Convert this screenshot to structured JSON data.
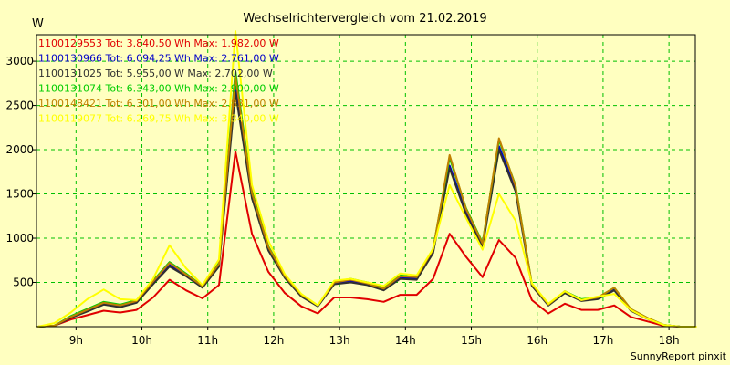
{
  "chart_data": {
    "type": "line",
    "title": "Wechselrichtervergleich vom 21.02.2019",
    "ylabel": "W",
    "credit": "SunnyReport pinxit",
    "xlim": [
      8.4,
      18.4
    ],
    "ylim": [
      0,
      3300
    ],
    "yticks": [
      500,
      1000,
      1500,
      2000,
      2500,
      3000
    ],
    "xticks": [
      {
        "v": 9,
        "label": "9h"
      },
      {
        "v": 10,
        "label": "10h"
      },
      {
        "v": 11,
        "label": "11h"
      },
      {
        "v": 12,
        "label": "12h"
      },
      {
        "v": 13,
        "label": "13h"
      },
      {
        "v": 14,
        "label": "14h"
      },
      {
        "v": 15,
        "label": "15h"
      },
      {
        "v": 16,
        "label": "16h"
      },
      {
        "v": 17,
        "label": "17h"
      },
      {
        "v": 18,
        "label": "18h"
      }
    ],
    "grid": true,
    "x": [
      8.42,
      8.67,
      8.92,
      9.17,
      9.42,
      9.67,
      9.92,
      10.17,
      10.42,
      10.67,
      10.92,
      11.17,
      11.42,
      11.67,
      11.92,
      12.17,
      12.42,
      12.67,
      12.92,
      13.17,
      13.42,
      13.67,
      13.92,
      14.17,
      14.42,
      14.67,
      14.92,
      15.17,
      15.42,
      15.67,
      15.92,
      16.17,
      16.42,
      16.67,
      16.92,
      17.17,
      17.42,
      17.67,
      17.92,
      18.17,
      18.42
    ],
    "series": [
      {
        "name": "1100129553 Tot: 3.840,50 Wh Max: 1.982,00 W",
        "color": "#e00000",
        "values": [
          0,
          10,
          80,
          130,
          180,
          160,
          190,
          330,
          530,
          410,
          320,
          470,
          1980,
          1050,
          620,
          380,
          230,
          150,
          330,
          330,
          310,
          280,
          360,
          360,
          540,
          1050,
          790,
          560,
          980,
          780,
          300,
          150,
          260,
          190,
          190,
          240,
          110,
          60,
          10,
          0,
          0
        ]
      },
      {
        "name": "1100130966 Tot: 6.094,25 Wh Max: 2.761,00 W",
        "color": "#0000c8",
        "values": [
          0,
          10,
          100,
          180,
          260,
          230,
          280,
          500,
          700,
          580,
          450,
          690,
          2700,
          1480,
          880,
          560,
          350,
          230,
          490,
          520,
          480,
          420,
          560,
          540,
          850,
          1820,
          1300,
          920,
          2040,
          1560,
          470,
          240,
          390,
          300,
          320,
          420,
          190,
          90,
          20,
          0,
          0
        ]
      },
      {
        "name": "1100131025 Tot: 5.955,00 W Max: 2.702,00 W",
        "color": "#303030",
        "values": [
          0,
          10,
          100,
          170,
          250,
          220,
          270,
          480,
          680,
          570,
          440,
          680,
          2650,
          1450,
          860,
          550,
          340,
          230,
          480,
          500,
          470,
          410,
          540,
          530,
          830,
          1790,
          1270,
          900,
          2000,
          1530,
          460,
          240,
          380,
          290,
          310,
          410,
          180,
          90,
          20,
          0,
          0
        ]
      },
      {
        "name": "1100131074 Tot: 6.343,00 Wh Max: 2.900,00 W",
        "color": "#00cc00",
        "values": [
          0,
          10,
          120,
          200,
          280,
          250,
          300,
          520,
          730,
          600,
          460,
          720,
          2890,
          1530,
          910,
          570,
          360,
          240,
          510,
          540,
          500,
          440,
          580,
          560,
          880,
          1910,
          1340,
          950,
          2110,
          1600,
          480,
          250,
          400,
          310,
          330,
          440,
          200,
          100,
          20,
          0,
          0
        ]
      },
      {
        "name": "1100148421 Tot: 6.301,00 Wh Max: 2.831,00 W",
        "color": "#c08000",
        "values": [
          0,
          10,
          110,
          190,
          270,
          240,
          290,
          510,
          720,
          590,
          460,
          710,
          2830,
          1510,
          900,
          570,
          360,
          240,
          500,
          530,
          490,
          430,
          570,
          560,
          870,
          1940,
          1330,
          940,
          2130,
          1590,
          480,
          250,
          400,
          300,
          330,
          440,
          200,
          100,
          20,
          0,
          0
        ]
      },
      {
        "name": "1100119077 Tot: 6.269,75 Wh Max: 3.340,00 W",
        "color": "#ffff00",
        "values": [
          0,
          40,
          160,
          310,
          420,
          310,
          300,
          540,
          920,
          660,
          470,
          760,
          3340,
          1600,
          970,
          590,
          370,
          240,
          520,
          540,
          500,
          460,
          600,
          580,
          880,
          1600,
          1230,
          870,
          1500,
          1200,
          490,
          260,
          400,
          300,
          340,
          370,
          190,
          90,
          20,
          0,
          0
        ]
      }
    ]
  }
}
